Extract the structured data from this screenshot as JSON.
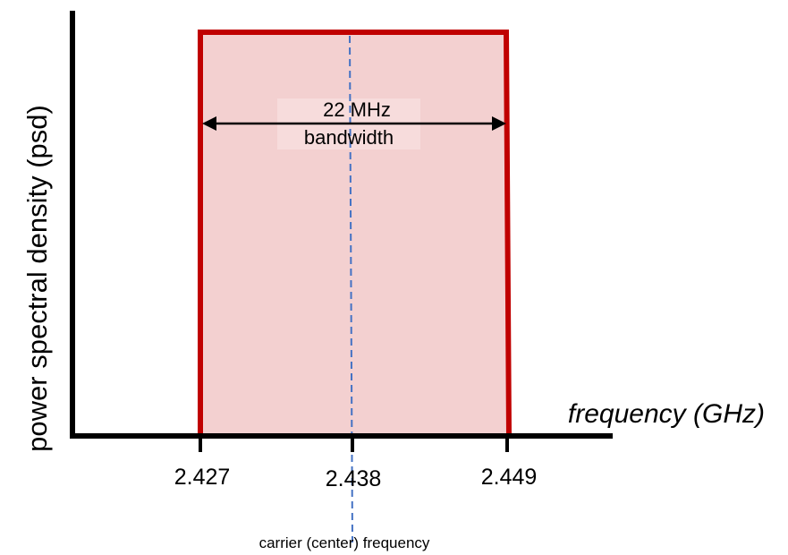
{
  "diagram": {
    "y_axis_label": "power spectral density (psd)",
    "x_axis_label": "frequency (GHz)",
    "bandwidth": {
      "line1": "22 MHz",
      "line2": "bandwidth"
    },
    "carrier_label": "carrier (center) frequency",
    "ticks": [
      "2.427",
      "2.438",
      "2.449"
    ],
    "colors": {
      "band_fill": "#f3d0d0",
      "band_stroke": "#c00000",
      "carrier_line": "#4472c4",
      "axis": "#000000"
    }
  },
  "chart_data": {
    "type": "area",
    "x": [
      2.427,
      2.449
    ],
    "x_ticks": [
      2.427,
      2.438,
      2.449
    ],
    "center_frequency": 2.438,
    "bandwidth_mhz": 22,
    "xlabel": "frequency (GHz)",
    "ylabel": "power spectral density (psd)"
  }
}
